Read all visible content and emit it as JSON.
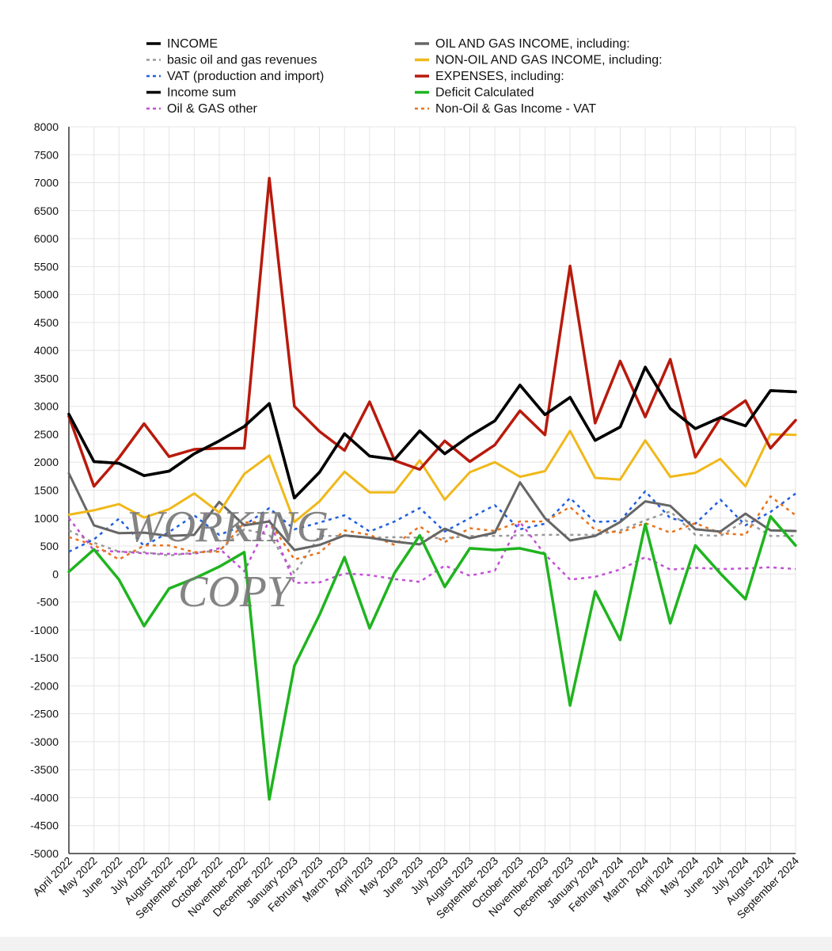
{
  "chart_data": {
    "type": "line",
    "title": "",
    "xlabel": "",
    "ylabel": "",
    "ylim": [
      -5000,
      8000
    ],
    "yticks": [
      8000,
      7500,
      7000,
      6500,
      6000,
      5500,
      5000,
      4500,
      4000,
      3500,
      3000,
      2500,
      2000,
      1500,
      1000,
      500,
      0,
      -500,
      -1000,
      -1500,
      -2000,
      -2500,
      -3000,
      -3500,
      -4000,
      -4500,
      -5000
    ],
    "grid": true,
    "legend_position": "top",
    "categories": [
      "April 2022",
      "May 2022",
      "June 2022",
      "July 2022",
      "August 2022",
      "September 2022",
      "October 2022",
      "November 2022",
      "December 2022",
      "January 2023",
      "February 2023",
      "March 2023",
      "April 2023",
      "May 2023",
      "June 2023",
      "July 2023",
      "August 2023",
      "September 2023",
      "October 2023",
      "November 2023",
      "December 2023",
      "January 2024",
      "February 2024",
      "March 2024",
      "April 2024",
      "May 2024",
      "June 2024",
      "July 2024",
      "August 2024",
      "September 2024"
    ],
    "series": [
      {
        "name": "INCOME",
        "color": "#000000",
        "dashed": false,
        "width": 3.5,
        "values": [
          2860,
          2010,
          1980,
          1760,
          1840,
          2150,
          2380,
          2640,
          3050,
          1360,
          1820,
          2510,
          2110,
          2050,
          2560,
          2150,
          2470,
          2740,
          3380,
          2850,
          3160,
          2390,
          2630,
          3700,
          2960,
          2600,
          2800,
          2650,
          3280,
          3260
        ]
      },
      {
        "name": "basic oil and gas revenues",
        "color": "#999999",
        "dashed": true,
        "width": 2.5,
        "values": [
          780,
          560,
          400,
          390,
          330,
          380,
          420,
          800,
          700,
          10,
          680,
          680,
          650,
          660,
          650,
          640,
          680,
          680,
          690,
          700,
          700,
          700,
          780,
          960,
          1120,
          700,
          680,
          960,
          680,
          680
        ]
      },
      {
        "name": "VAT (production and import)",
        "color": "#1f5fe0",
        "dashed": true,
        "width": 2.5,
        "values": [
          400,
          620,
          990,
          500,
          750,
          1050,
          700,
          870,
          1180,
          800,
          920,
          1050,
          760,
          940,
          1180,
          760,
          1000,
          1230,
          800,
          900,
          1360,
          930,
          950,
          1480,
          1000,
          900,
          1330,
          870,
          1110,
          1440
        ]
      },
      {
        "name": "Income sum",
        "color": "#000000",
        "dashed": false,
        "width": 3.5,
        "values": [
          2860,
          2010,
          1980,
          1760,
          1840,
          2150,
          2380,
          2640,
          3050,
          1360,
          1820,
          2510,
          2110,
          2050,
          2560,
          2150,
          2470,
          2740,
          3380,
          2850,
          3160,
          2390,
          2630,
          3700,
          2960,
          2600,
          2800,
          2650,
          3280,
          3260
        ]
      },
      {
        "name": "Oil & GAS other",
        "color": "#c24ed6",
        "dashed": true,
        "width": 2.5,
        "values": [
          1000,
          420,
          400,
          370,
          360,
          360,
          460,
          50,
          960,
          -160,
          -150,
          10,
          -20,
          -90,
          -140,
          150,
          -30,
          60,
          930,
          350,
          -100,
          -50,
          80,
          300,
          80,
          110,
          90,
          100,
          120,
          90
        ]
      },
      {
        "name": "OIL AND GAS INCOME, including:",
        "color": "#666666",
        "dashed": false,
        "width": 3,
        "values": [
          1800,
          870,
          730,
          740,
          680,
          700,
          1290,
          870,
          940,
          430,
          520,
          690,
          650,
          580,
          530,
          810,
          640,
          740,
          1640,
          1000,
          600,
          680,
          930,
          1300,
          1220,
          800,
          760,
          1080,
          780,
          770
        ]
      },
      {
        "name": "NON-OIL AND GAS INCOME, including:",
        "color": "#f0b81a",
        "dashed": false,
        "width": 3,
        "values": [
          1060,
          1140,
          1250,
          1010,
          1160,
          1440,
          1100,
          1790,
          2120,
          930,
          1300,
          1830,
          1460,
          1460,
          2030,
          1330,
          1820,
          2000,
          1740,
          1840,
          2560,
          1720,
          1690,
          2390,
          1740,
          1810,
          2060,
          1570,
          2500,
          2490
        ]
      },
      {
        "name": "EXPENSES, including:",
        "color": "#b81a0c",
        "dashed": false,
        "width": 3.5,
        "values": [
          2820,
          1570,
          2080,
          2690,
          2100,
          2230,
          2250,
          2250,
          7080,
          3000,
          2550,
          2210,
          3080,
          2030,
          1870,
          2380,
          2010,
          2310,
          2920,
          2490,
          5510,
          2700,
          3810,
          2810,
          3840,
          2090,
          2790,
          3100,
          2250,
          2750
        ]
      },
      {
        "name": "Deficit Calculated",
        "color": "#1fb41f",
        "dashed": false,
        "width": 3.5,
        "values": [
          40,
          440,
          -100,
          -930,
          -260,
          -80,
          130,
          390,
          -4030,
          -1640,
          -730,
          300,
          -970,
          20,
          690,
          -230,
          460,
          430,
          460,
          360,
          -2350,
          -310,
          -1180,
          890,
          -880,
          510,
          10,
          -450,
          1030,
          510
        ]
      },
      {
        "name": "Non-Oil & Gas Income - VAT",
        "color": "#e8721c",
        "dashed": true,
        "width": 2.5,
        "values": [
          660,
          520,
          260,
          510,
          510,
          390,
          400,
          920,
          940,
          260,
          380,
          780,
          700,
          520,
          850,
          570,
          820,
          770,
          940,
          940,
          1200,
          790,
          740,
          910,
          740,
          910,
          730,
          700,
          1390,
          1050
        ]
      }
    ]
  },
  "legend": {
    "left": [
      "INCOME",
      "basic oil and gas revenues",
      "VAT (production and import)",
      "Income sum",
      "Oil & GAS other"
    ],
    "right": [
      "OIL AND GAS INCOME, including:",
      "NON-OIL AND GAS INCOME, including:",
      "EXPENSES, including:",
      "Deficit Calculated",
      "Non-Oil & Gas Income - VAT"
    ]
  },
  "watermark": {
    "line1": "WORKING",
    "line2": "COPY"
  }
}
